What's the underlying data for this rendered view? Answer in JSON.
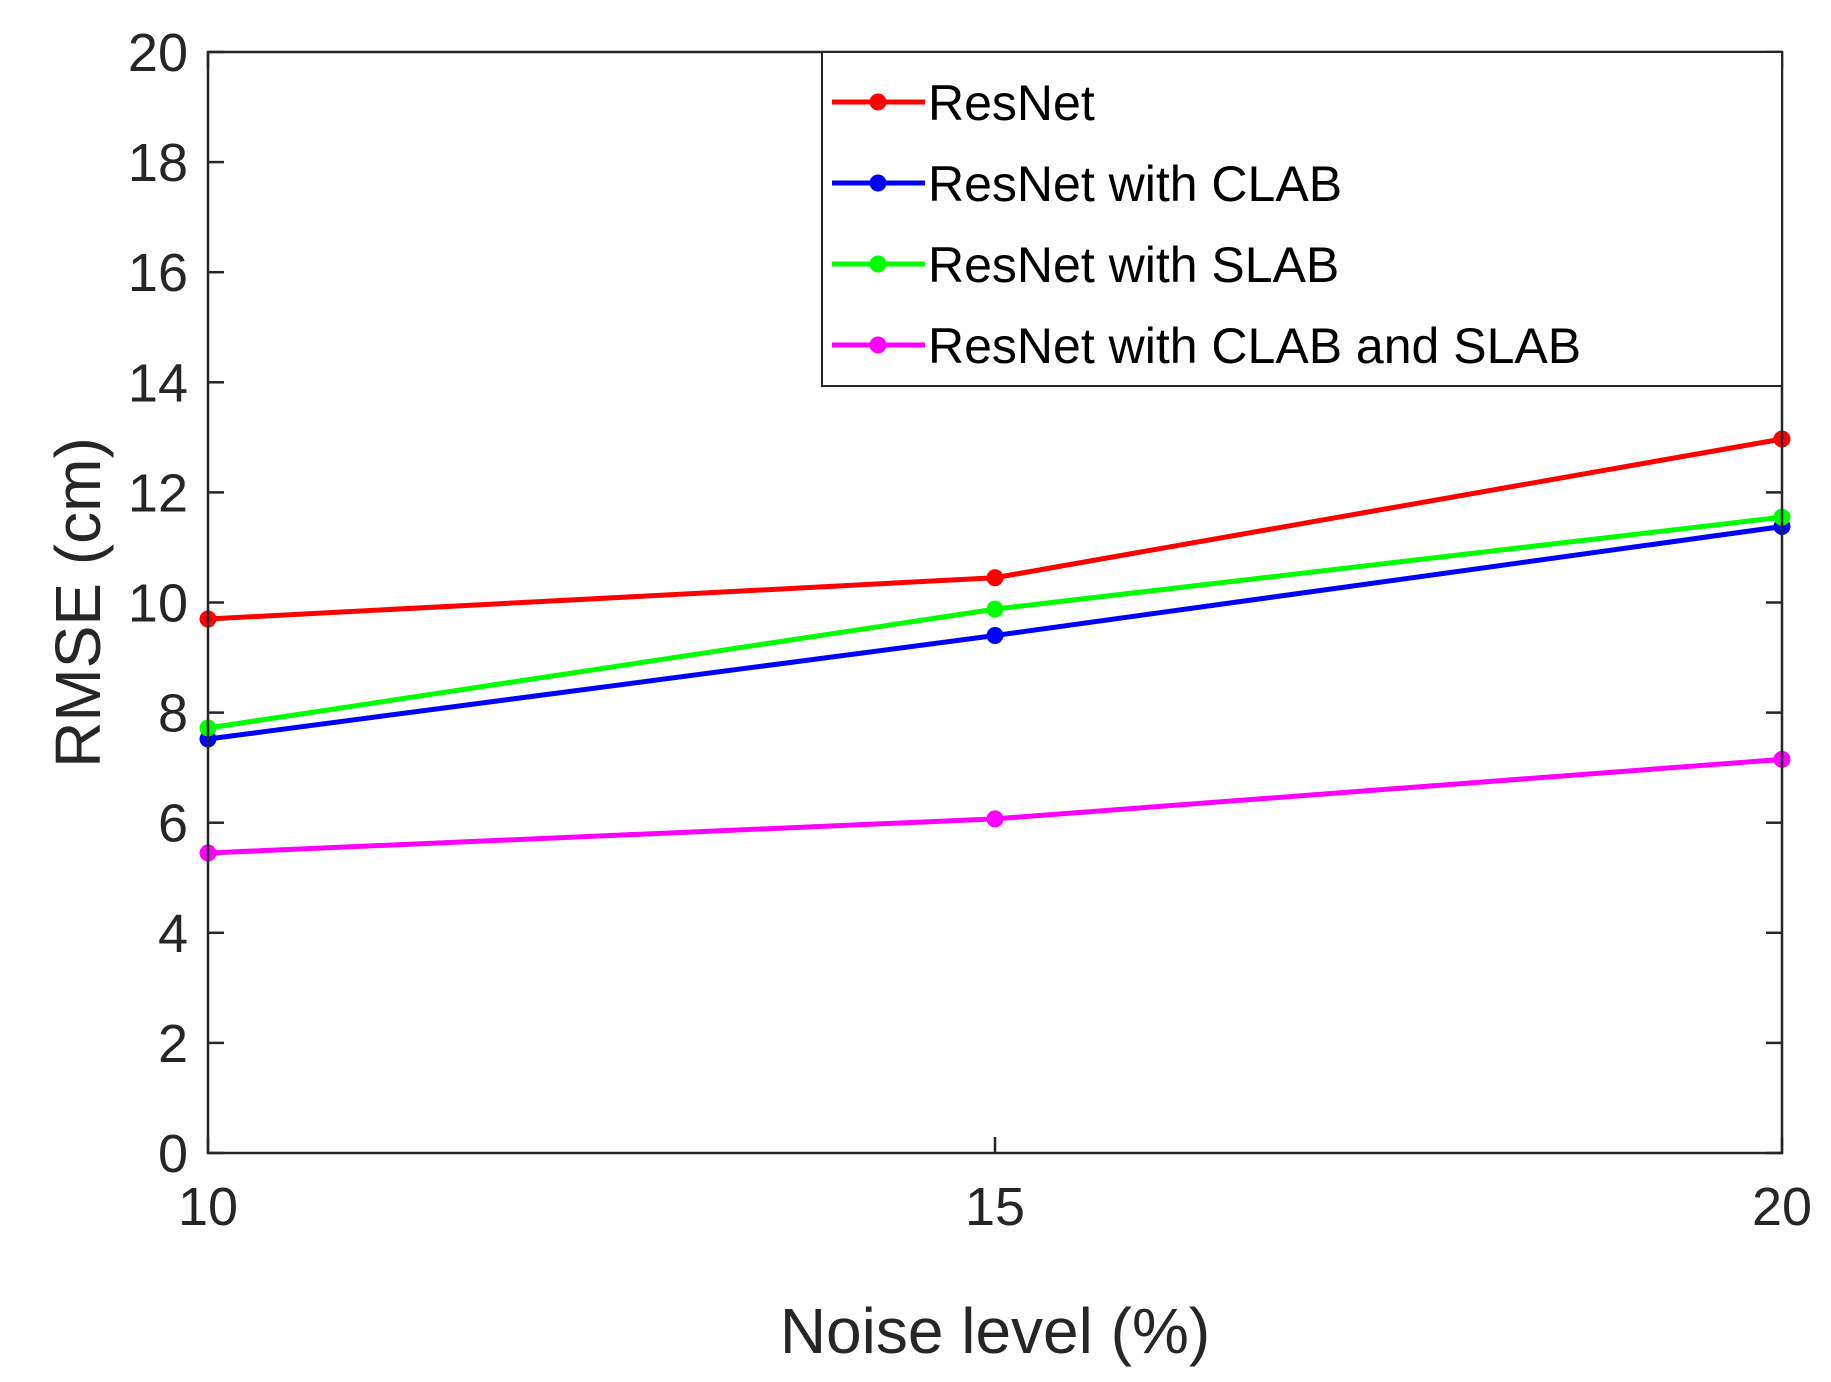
{
  "chart_data": {
    "type": "line",
    "title": "",
    "xlabel": "Noise level (%)",
    "ylabel": "RMSE (cm)",
    "x": [
      10,
      15,
      20
    ],
    "xlim": [
      10,
      20
    ],
    "ylim": [
      0,
      20
    ],
    "xticks": [
      10,
      15,
      20
    ],
    "yticks": [
      0,
      2,
      4,
      6,
      8,
      10,
      12,
      14,
      16,
      18,
      20
    ],
    "grid": false,
    "legend_position": "top-right",
    "series": [
      {
        "name": "ResNet",
        "color": "#ff0000",
        "values": [
          9.7,
          10.45,
          12.97
        ]
      },
      {
        "name": "ResNet with CLAB",
        "color": "#0000ff",
        "values": [
          7.52,
          9.4,
          11.38
        ]
      },
      {
        "name": "ResNet with SLAB",
        "color": "#00ff00",
        "values": [
          7.72,
          9.88,
          11.55
        ]
      },
      {
        "name": "ResNet with CLAB and SLAB",
        "color": "#ff00ff",
        "values": [
          5.45,
          6.07,
          7.15
        ]
      }
    ]
  }
}
